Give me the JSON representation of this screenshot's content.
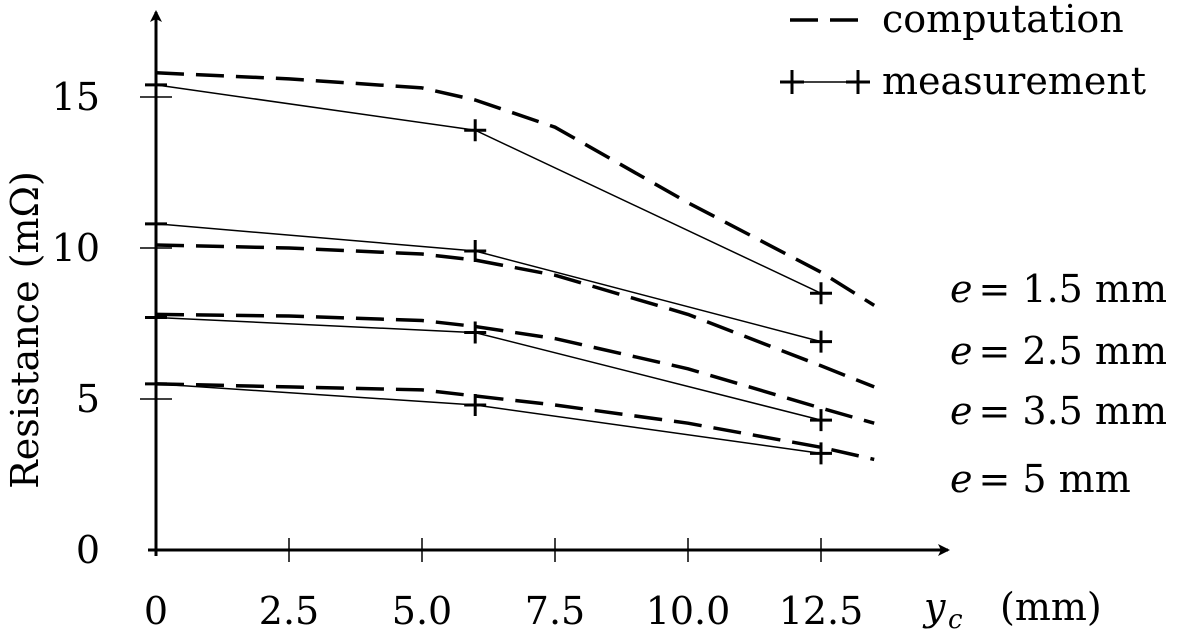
{
  "chart_data": {
    "type": "line",
    "title": "",
    "xlabel_var": "y",
    "xlabel_sub": "c",
    "xlabel_unit": "(mm)",
    "ylabel": "Resistance (mΩ)",
    "xlim": [
      0,
      13.5
    ],
    "ylim": [
      0,
      17.5
    ],
    "xticks": [
      "0",
      "2.5",
      "5.0",
      "7.5",
      "10.0",
      "12.5"
    ],
    "xtick_values": [
      0,
      2.5,
      5.0,
      7.5,
      10.0,
      12.5
    ],
    "yticks": [
      "0",
      "5",
      "10",
      "15"
    ],
    "ytick_values": [
      0,
      5,
      10,
      15
    ],
    "grid": false,
    "legend": {
      "placement": "top-right",
      "entries": [
        {
          "label": "computation",
          "style": "dashed"
        },
        {
          "label": "measurement",
          "style": "solid-plus"
        }
      ]
    },
    "annotations": [
      {
        "var": "e",
        "text": "= 1.5 mm"
      },
      {
        "var": "e",
        "text": "= 2.5 mm"
      },
      {
        "var": "e",
        "text": "= 3.5 mm"
      },
      {
        "var": "e",
        "text": "= 5 mm"
      }
    ],
    "computation_series": [
      {
        "case": "e = 1.5 mm",
        "x": [
          0,
          2.5,
          5.0,
          6.0,
          7.5,
          10.0,
          12.5,
          13.5
        ],
        "y": [
          15.8,
          15.6,
          15.3,
          14.9,
          14.0,
          11.5,
          9.2,
          8.1
        ]
      },
      {
        "case": "e = 2.5 mm",
        "x": [
          0,
          2.5,
          5.0,
          6.0,
          7.5,
          10.0,
          12.5,
          13.5
        ],
        "y": [
          10.1,
          10.0,
          9.8,
          9.6,
          9.1,
          7.8,
          6.1,
          5.4
        ]
      },
      {
        "case": "e = 3.5 mm",
        "x": [
          0,
          2.5,
          5.0,
          6.0,
          7.5,
          10.0,
          12.5,
          13.5
        ],
        "y": [
          7.8,
          7.75,
          7.6,
          7.4,
          7.0,
          6.0,
          4.7,
          4.2
        ]
      },
      {
        "case": "e = 5 mm",
        "x": [
          0,
          2.5,
          5.0,
          6.0,
          7.5,
          10.0,
          12.5,
          13.5
        ],
        "y": [
          5.5,
          5.4,
          5.3,
          5.1,
          4.8,
          4.2,
          3.4,
          3.0
        ]
      }
    ],
    "measurement_series": [
      {
        "case": "e = 1.5 mm",
        "x": [
          0,
          6.0,
          12.5
        ],
        "y": [
          15.4,
          13.9,
          8.5
        ]
      },
      {
        "case": "e = 2.5 mm",
        "x": [
          0,
          6.0,
          12.5
        ],
        "y": [
          10.8,
          9.9,
          6.9
        ]
      },
      {
        "case": "e = 3.5 mm",
        "x": [
          0,
          6.0,
          12.5
        ],
        "y": [
          7.7,
          7.2,
          4.3
        ]
      },
      {
        "case": "e = 5 mm",
        "x": [
          0,
          6.0,
          12.5
        ],
        "y": [
          5.5,
          4.8,
          3.2
        ]
      }
    ]
  }
}
